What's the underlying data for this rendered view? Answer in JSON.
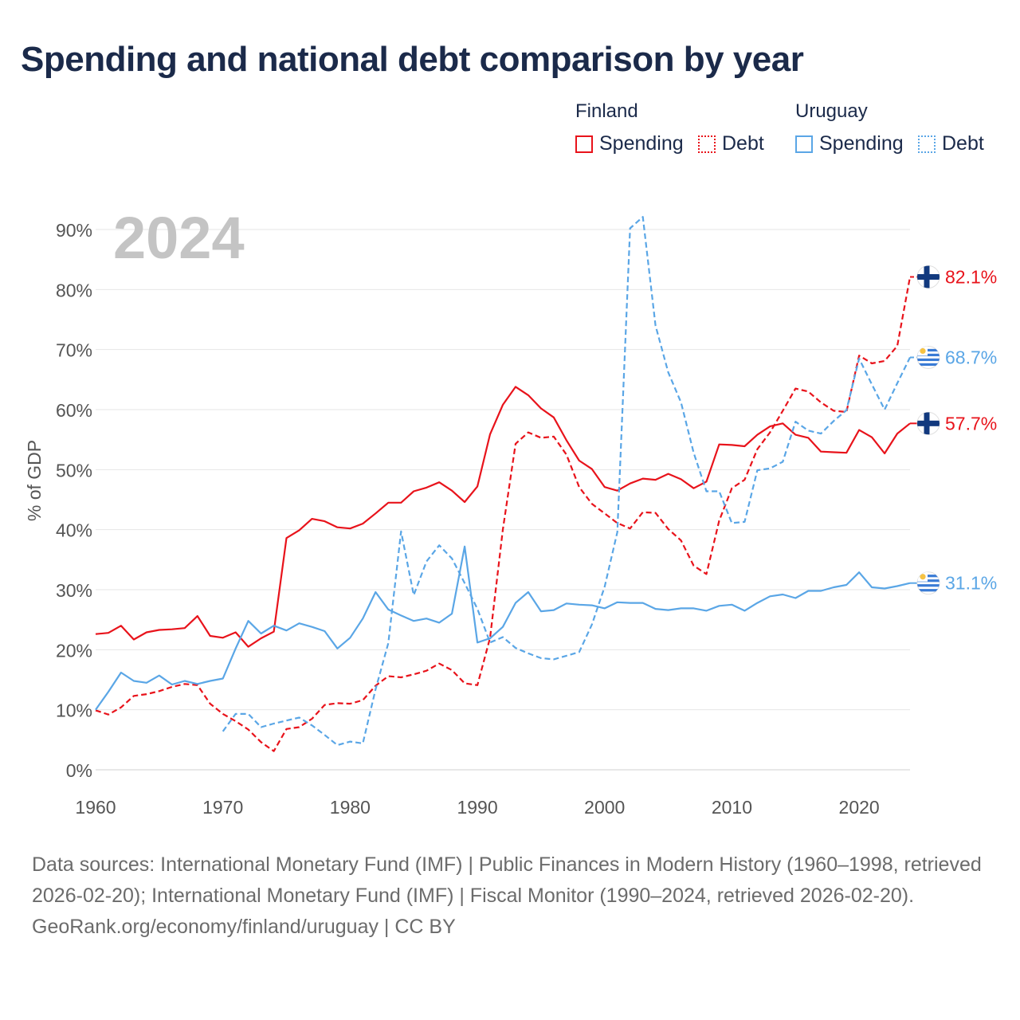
{
  "title": "Spending and national debt comparison by year",
  "legend": {
    "groups": [
      {
        "name": "Finland",
        "color": "#e8131b",
        "spending_label": "Spending",
        "debt_label": "Debt"
      },
      {
        "name": "Uruguay",
        "color": "#5aa6e6",
        "spending_label": "Spending",
        "debt_label": "Debt"
      }
    ]
  },
  "footer": {
    "sources": "Data sources: International Monetary Fund (IMF) | Public Finances in Modern History (1960–1998, retrieved 2026-02-20); International Monetary Fund (IMF) | Fiscal Monitor (1990–2024, retrieved 2026-02-20).",
    "credit": "GeoRank.org/economy/finland/uruguay | CC BY"
  },
  "chart_data": {
    "type": "line",
    "year_watermark": "2024",
    "ylabel": "% of GDP",
    "xlabel": "",
    "xlim": [
      1960,
      2024
    ],
    "ylim": [
      0,
      90
    ],
    "x_ticks": [
      1960,
      1970,
      1980,
      1990,
      2000,
      2010,
      2020
    ],
    "y_ticks": [
      0,
      10,
      20,
      30,
      40,
      50,
      60,
      70,
      80,
      90
    ],
    "y_tick_labels": [
      "0%",
      "10%",
      "20%",
      "30%",
      "40%",
      "50%",
      "60%",
      "70%",
      "80%",
      "90%"
    ],
    "end_labels": [
      {
        "series": "finland_debt",
        "text": "82.1%",
        "flag": "finland"
      },
      {
        "series": "uruguay_debt",
        "text": "68.7%",
        "flag": "uruguay"
      },
      {
        "series": "finland_spending",
        "text": "57.7%",
        "flag": "finland"
      },
      {
        "series": "uruguay_spending",
        "text": "31.1%",
        "flag": "uruguay"
      }
    ],
    "series": [
      {
        "id": "finland_spending",
        "name": "Finland Spending",
        "color": "#e8131b",
        "dash": false,
        "points": [
          [
            1960,
            22.6
          ],
          [
            1961,
            22.8
          ],
          [
            1962,
            24.0
          ],
          [
            1963,
            21.7
          ],
          [
            1964,
            22.9
          ],
          [
            1965,
            23.3
          ],
          [
            1966,
            23.4
          ],
          [
            1967,
            23.6
          ],
          [
            1968,
            25.6
          ],
          [
            1969,
            22.3
          ],
          [
            1970,
            22.0
          ],
          [
            1971,
            22.9
          ],
          [
            1972,
            20.5
          ],
          [
            1973,
            21.9
          ],
          [
            1974,
            23.0
          ],
          [
            1975,
            38.6
          ],
          [
            1976,
            39.9
          ],
          [
            1977,
            41.8
          ],
          [
            1978,
            41.4
          ],
          [
            1979,
            40.4
          ],
          [
            1980,
            40.2
          ],
          [
            1981,
            41.0
          ],
          [
            1982,
            42.7
          ],
          [
            1983,
            44.5
          ],
          [
            1984,
            44.5
          ],
          [
            1985,
            46.4
          ],
          [
            1986,
            47.0
          ],
          [
            1987,
            47.9
          ],
          [
            1988,
            46.5
          ],
          [
            1989,
            44.6
          ],
          [
            1990,
            47.2
          ],
          [
            1991,
            55.9
          ],
          [
            1992,
            60.8
          ],
          [
            1993,
            63.8
          ],
          [
            1994,
            62.4
          ],
          [
            1995,
            60.2
          ],
          [
            1996,
            58.7
          ],
          [
            1997,
            54.9
          ],
          [
            1998,
            51.5
          ],
          [
            1999,
            50.1
          ],
          [
            2000,
            47.1
          ],
          [
            2001,
            46.5
          ],
          [
            2002,
            47.7
          ],
          [
            2003,
            48.5
          ],
          [
            2004,
            48.3
          ],
          [
            2005,
            49.3
          ],
          [
            2006,
            48.4
          ],
          [
            2007,
            46.9
          ],
          [
            2008,
            48.0
          ],
          [
            2009,
            54.2
          ],
          [
            2010,
            54.1
          ],
          [
            2011,
            53.9
          ],
          [
            2012,
            55.8
          ],
          [
            2013,
            57.2
          ],
          [
            2014,
            57.7
          ],
          [
            2015,
            55.8
          ],
          [
            2016,
            55.3
          ],
          [
            2017,
            53.0
          ],
          [
            2018,
            52.9
          ],
          [
            2019,
            52.8
          ],
          [
            2020,
            56.6
          ],
          [
            2021,
            55.4
          ],
          [
            2022,
            52.7
          ],
          [
            2023,
            56.0
          ],
          [
            2024,
            57.7
          ]
        ]
      },
      {
        "id": "finland_debt",
        "name": "Finland Debt",
        "color": "#e8131b",
        "dash": true,
        "points": [
          [
            1960,
            9.9
          ],
          [
            1961,
            9.2
          ],
          [
            1962,
            10.4
          ],
          [
            1963,
            12.3
          ],
          [
            1964,
            12.6
          ],
          [
            1965,
            13.1
          ],
          [
            1966,
            13.8
          ],
          [
            1967,
            14.3
          ],
          [
            1968,
            14.1
          ],
          [
            1969,
            11.0
          ],
          [
            1970,
            9.3
          ],
          [
            1971,
            8.1
          ],
          [
            1972,
            6.7
          ],
          [
            1973,
            4.6
          ],
          [
            1974,
            3.1
          ],
          [
            1975,
            6.8
          ],
          [
            1976,
            7.1
          ],
          [
            1977,
            8.5
          ],
          [
            1978,
            10.8
          ],
          [
            1979,
            11.1
          ],
          [
            1980,
            11.0
          ],
          [
            1981,
            11.6
          ],
          [
            1982,
            14.0
          ],
          [
            1983,
            15.6
          ],
          [
            1984,
            15.4
          ],
          [
            1985,
            15.9
          ],
          [
            1986,
            16.5
          ],
          [
            1987,
            17.7
          ],
          [
            1988,
            16.6
          ],
          [
            1989,
            14.4
          ],
          [
            1990,
            14.1
          ],
          [
            1991,
            22.0
          ],
          [
            1992,
            40.0
          ],
          [
            1993,
            54.3
          ],
          [
            1994,
            56.2
          ],
          [
            1995,
            55.3
          ],
          [
            1996,
            55.5
          ],
          [
            1997,
            52.5
          ],
          [
            1998,
            47.1
          ],
          [
            1999,
            44.3
          ],
          [
            2000,
            42.7
          ],
          [
            2001,
            41.1
          ],
          [
            2002,
            40.2
          ],
          [
            2003,
            42.9
          ],
          [
            2004,
            42.8
          ],
          [
            2005,
            40.1
          ],
          [
            2006,
            38.2
          ],
          [
            2007,
            34.0
          ],
          [
            2008,
            32.6
          ],
          [
            2009,
            41.5
          ],
          [
            2010,
            46.9
          ],
          [
            2011,
            48.3
          ],
          [
            2012,
            53.4
          ],
          [
            2013,
            56.2
          ],
          [
            2014,
            59.8
          ],
          [
            2015,
            63.5
          ],
          [
            2016,
            63.0
          ],
          [
            2017,
            61.2
          ],
          [
            2018,
            59.8
          ],
          [
            2019,
            59.6
          ],
          [
            2020,
            69.0
          ],
          [
            2021,
            67.7
          ],
          [
            2022,
            68.1
          ],
          [
            2023,
            70.6
          ],
          [
            2024,
            82.1
          ]
        ]
      },
      {
        "id": "uruguay_spending",
        "name": "Uruguay Spending",
        "color": "#5aa6e6",
        "dash": false,
        "points": [
          [
            1960,
            10.0
          ],
          [
            1961,
            13.0
          ],
          [
            1962,
            16.2
          ],
          [
            1963,
            14.8
          ],
          [
            1964,
            14.5
          ],
          [
            1965,
            15.7
          ],
          [
            1966,
            14.2
          ],
          [
            1967,
            14.8
          ],
          [
            1968,
            14.3
          ],
          [
            1969,
            14.8
          ],
          [
            1970,
            15.2
          ],
          [
            1971,
            20.2
          ],
          [
            1972,
            24.8
          ],
          [
            1973,
            22.7
          ],
          [
            1974,
            24.0
          ],
          [
            1975,
            23.2
          ],
          [
            1976,
            24.4
          ],
          [
            1977,
            23.8
          ],
          [
            1978,
            23.1
          ],
          [
            1979,
            20.2
          ],
          [
            1980,
            22.0
          ],
          [
            1981,
            25.2
          ],
          [
            1982,
            29.6
          ],
          [
            1983,
            26.7
          ],
          [
            1984,
            25.7
          ],
          [
            1985,
            24.8
          ],
          [
            1986,
            25.2
          ],
          [
            1987,
            24.5
          ],
          [
            1988,
            26.0
          ],
          [
            1989,
            37.2
          ],
          [
            1990,
            21.2
          ],
          [
            1991,
            21.9
          ],
          [
            1992,
            23.8
          ],
          [
            1993,
            27.8
          ],
          [
            1994,
            29.6
          ],
          [
            1995,
            26.4
          ],
          [
            1996,
            26.6
          ],
          [
            1997,
            27.7
          ],
          [
            1998,
            27.5
          ],
          [
            1999,
            27.4
          ],
          [
            2000,
            26.9
          ],
          [
            2001,
            27.9
          ],
          [
            2002,
            27.8
          ],
          [
            2003,
            27.8
          ],
          [
            2004,
            26.8
          ],
          [
            2005,
            26.6
          ],
          [
            2006,
            26.9
          ],
          [
            2007,
            26.9
          ],
          [
            2008,
            26.5
          ],
          [
            2009,
            27.3
          ],
          [
            2010,
            27.5
          ],
          [
            2011,
            26.5
          ],
          [
            2012,
            27.8
          ],
          [
            2013,
            28.9
          ],
          [
            2014,
            29.2
          ],
          [
            2015,
            28.6
          ],
          [
            2016,
            29.8
          ],
          [
            2017,
            29.8
          ],
          [
            2018,
            30.4
          ],
          [
            2019,
            30.8
          ],
          [
            2020,
            32.9
          ],
          [
            2021,
            30.4
          ],
          [
            2022,
            30.2
          ],
          [
            2023,
            30.6
          ],
          [
            2024,
            31.1
          ]
        ]
      },
      {
        "id": "uruguay_debt",
        "name": "Uruguay Debt",
        "color": "#5aa6e6",
        "dash": true,
        "points": [
          [
            1970,
            6.4
          ],
          [
            1971,
            9.3
          ],
          [
            1972,
            9.3
          ],
          [
            1973,
            7.1
          ],
          [
            1974,
            7.7
          ],
          [
            1975,
            8.2
          ],
          [
            1976,
            8.7
          ],
          [
            1977,
            7.4
          ],
          [
            1978,
            5.8
          ],
          [
            1979,
            4.1
          ],
          [
            1980,
            4.7
          ],
          [
            1981,
            4.4
          ],
          [
            1982,
            13.4
          ],
          [
            1983,
            21.1
          ],
          [
            1984,
            39.7
          ],
          [
            1985,
            29.1
          ],
          [
            1986,
            34.7
          ],
          [
            1987,
            37.4
          ],
          [
            1988,
            35.2
          ],
          [
            1989,
            31.1
          ],
          [
            1990,
            26.8
          ],
          [
            1991,
            21.2
          ],
          [
            1992,
            22.1
          ],
          [
            1993,
            20.3
          ],
          [
            1994,
            19.4
          ],
          [
            1995,
            18.6
          ],
          [
            1996,
            18.4
          ],
          [
            1997,
            19.0
          ],
          [
            1998,
            19.6
          ],
          [
            1999,
            24.2
          ],
          [
            2000,
            30.5
          ],
          [
            2001,
            39.6
          ],
          [
            2002,
            90.2
          ],
          [
            2003,
            92.1
          ],
          [
            2004,
            74.0
          ],
          [
            2005,
            66.2
          ],
          [
            2006,
            61.2
          ],
          [
            2007,
            52.8
          ],
          [
            2008,
            46.4
          ],
          [
            2009,
            46.4
          ],
          [
            2010,
            41.1
          ],
          [
            2011,
            41.3
          ],
          [
            2012,
            49.9
          ],
          [
            2013,
            50.2
          ],
          [
            2014,
            51.3
          ],
          [
            2015,
            58.0
          ],
          [
            2016,
            56.5
          ],
          [
            2017,
            56.0
          ],
          [
            2018,
            58.1
          ],
          [
            2019,
            59.9
          ],
          [
            2020,
            68.5
          ],
          [
            2021,
            64.2
          ],
          [
            2022,
            60.0
          ],
          [
            2023,
            64.4
          ],
          [
            2024,
            68.7
          ]
        ]
      }
    ]
  }
}
